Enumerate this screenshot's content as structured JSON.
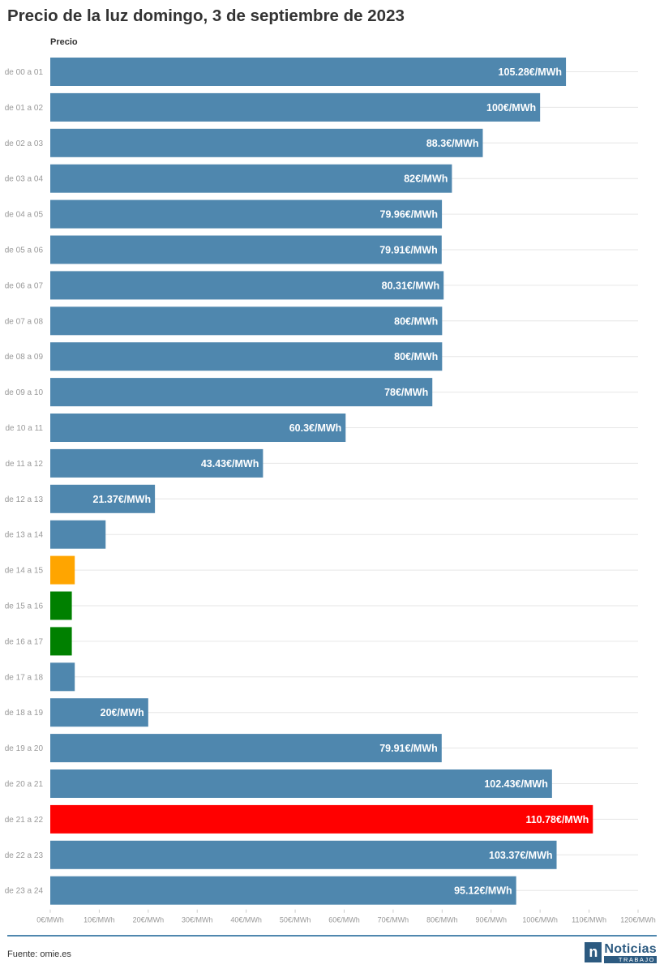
{
  "title": "Precio de la luz domingo, 3 de septiembre de 2023",
  "footer": {
    "source": "Fuente: omie.es",
    "logo_mark": "n",
    "logo_name": "Noticias",
    "logo_sub": "TRABAJO"
  },
  "colors": {
    "default": "#4f87ae",
    "min": "#008000",
    "max": "#ff0000",
    "highlight": "#ffa500"
  },
  "chart_data": {
    "type": "bar",
    "orientation": "horizontal",
    "series_label": "Precio",
    "xlim": [
      0,
      120
    ],
    "xticks": [
      "0€/MWh",
      "10€/MWh",
      "20€/MWh",
      "30€/MWh",
      "40€/MWh",
      "50€/MWh",
      "60€/MWh",
      "70€/MWh",
      "80€/MWh",
      "90€/MWh",
      "100€/MWh",
      "110€/MWh",
      "120€/MWh"
    ],
    "grid": true,
    "categories": [
      "de 00 a 01",
      "de 01 a 02",
      "de 02 a 03",
      "de 03 a 04",
      "de 04 a 05",
      "de 05 a 06",
      "de 06 a 07",
      "de 07 a 08",
      "de 08 a 09",
      "de 09 a 10",
      "de 10 a 11",
      "de 11 a 12",
      "de 12 a 13",
      "de 13 a 14",
      "de 14 a 15",
      "de 15 a 16",
      "de 16 a 17",
      "de 17 a 18",
      "de 18 a 19",
      "de 19 a 20",
      "de 20 a 21",
      "de 21 a 22",
      "de 22 a 23",
      "de 23 a 24"
    ],
    "values": [
      105.28,
      100,
      88.3,
      82,
      79.96,
      79.91,
      80.31,
      80,
      80,
      78,
      60.3,
      43.43,
      21.37,
      11.3,
      5,
      4.4,
      4.4,
      5,
      20,
      79.91,
      102.43,
      110.78,
      103.37,
      95.12
    ],
    "labels": [
      "105.28€/MWh",
      "100€/MWh",
      "88.3€/MWh",
      "82€/MWh",
      "79.96€/MWh",
      "79.91€/MWh",
      "80.31€/MWh",
      "80€/MWh",
      "80€/MWh",
      "78€/MWh",
      "60.3€/MWh",
      "43.43€/MWh",
      "21.37€/MWh",
      "",
      "",
      "",
      "",
      "",
      "20€/MWh",
      "79.91€/MWh",
      "102.43€/MWh",
      "110.78€/MWh",
      "103.37€/MWh",
      "95.12€/MWh"
    ],
    "bar_colors": [
      "default",
      "default",
      "default",
      "default",
      "default",
      "default",
      "default",
      "default",
      "default",
      "default",
      "default",
      "default",
      "default",
      "default",
      "highlight",
      "min",
      "min",
      "default",
      "default",
      "default",
      "default",
      "max",
      "default",
      "default"
    ]
  }
}
